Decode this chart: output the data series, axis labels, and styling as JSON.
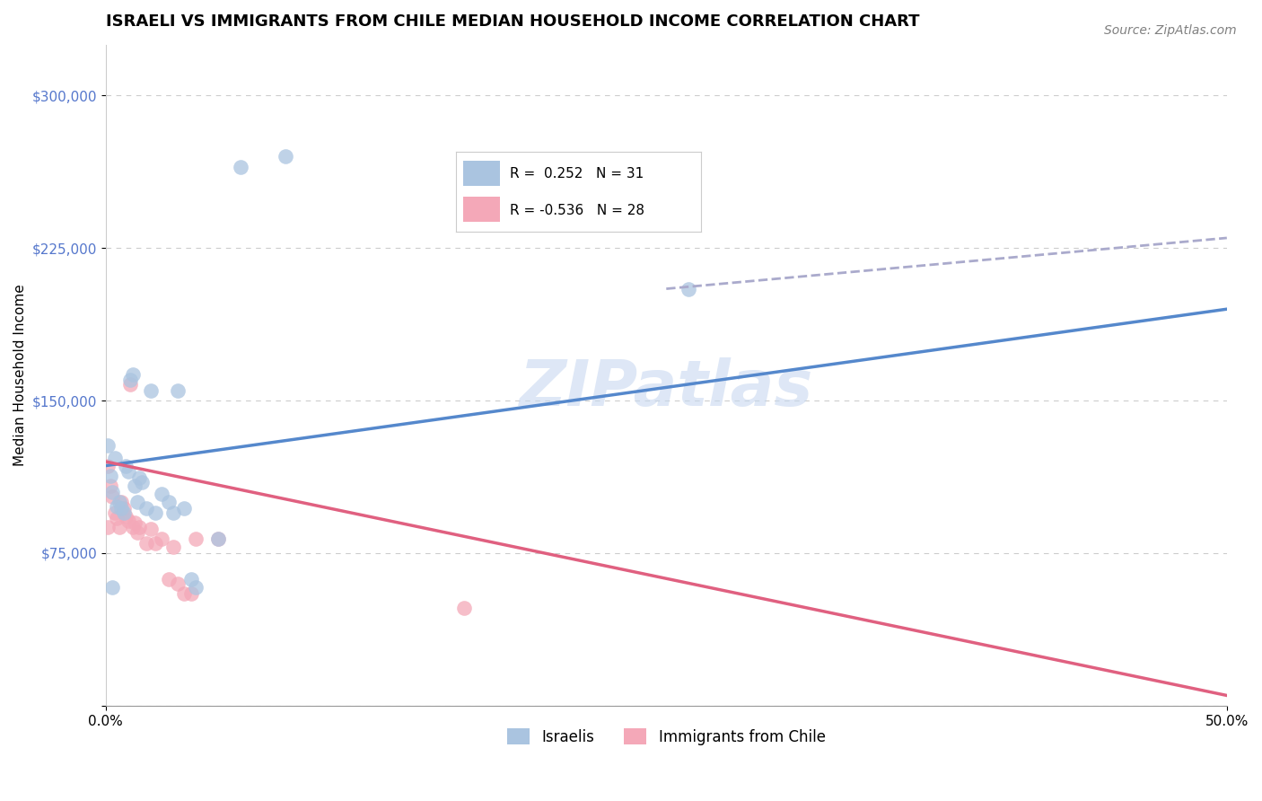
{
  "title": "ISRAELI VS IMMIGRANTS FROM CHILE MEDIAN HOUSEHOLD INCOME CORRELATION CHART",
  "source": "Source: ZipAtlas.com",
  "xlabel": "",
  "ylabel": "Median Household Income",
  "xlim": [
    0.0,
    0.5
  ],
  "ylim": [
    0,
    325000
  ],
  "yticks": [
    0,
    75000,
    150000,
    225000,
    300000
  ],
  "ytick_labels": [
    "",
    "$75,000",
    "$150,000",
    "$225,000",
    "$300,000"
  ],
  "xtick_labels": [
    "0.0%",
    "50.0%"
  ],
  "legend_r1": "R =  0.252   N = 31",
  "legend_r2": "R = -0.536   N = 28",
  "watermark": "ZIPatlas",
  "background_color": "#ffffff",
  "grid_color": "#cccccc",
  "israeli_color": "#aac4e0",
  "chile_color": "#f4a8b8",
  "israeli_line_color": "#5588cc",
  "chile_line_color": "#e06080",
  "dashed_line_color": "#aaaacc",
  "israeli_scatter": [
    [
      0.001,
      128000
    ],
    [
      0.002,
      113000
    ],
    [
      0.003,
      105000
    ],
    [
      0.004,
      122000
    ],
    [
      0.005,
      98000
    ],
    [
      0.006,
      100000
    ],
    [
      0.007,
      97000
    ],
    [
      0.008,
      95000
    ],
    [
      0.009,
      118000
    ],
    [
      0.01,
      115000
    ],
    [
      0.011,
      160000
    ],
    [
      0.012,
      163000
    ],
    [
      0.013,
      108000
    ],
    [
      0.014,
      100000
    ],
    [
      0.015,
      112000
    ],
    [
      0.016,
      110000
    ],
    [
      0.018,
      97000
    ],
    [
      0.02,
      155000
    ],
    [
      0.022,
      95000
    ],
    [
      0.025,
      104000
    ],
    [
      0.028,
      100000
    ],
    [
      0.03,
      95000
    ],
    [
      0.032,
      155000
    ],
    [
      0.035,
      97000
    ],
    [
      0.038,
      62000
    ],
    [
      0.04,
      58000
    ],
    [
      0.05,
      82000
    ],
    [
      0.06,
      265000
    ],
    [
      0.08,
      270000
    ],
    [
      0.26,
      205000
    ],
    [
      0.003,
      58000
    ]
  ],
  "chile_scatter": [
    [
      0.001,
      118000
    ],
    [
      0.002,
      108000
    ],
    [
      0.003,
      103000
    ],
    [
      0.004,
      95000
    ],
    [
      0.005,
      92000
    ],
    [
      0.006,
      88000
    ],
    [
      0.007,
      100000
    ],
    [
      0.008,
      97000
    ],
    [
      0.009,
      93000
    ],
    [
      0.01,
      91000
    ],
    [
      0.011,
      158000
    ],
    [
      0.012,
      88000
    ],
    [
      0.013,
      90000
    ],
    [
      0.014,
      85000
    ],
    [
      0.015,
      88000
    ],
    [
      0.018,
      80000
    ],
    [
      0.02,
      87000
    ],
    [
      0.022,
      80000
    ],
    [
      0.025,
      82000
    ],
    [
      0.028,
      62000
    ],
    [
      0.03,
      78000
    ],
    [
      0.032,
      60000
    ],
    [
      0.035,
      55000
    ],
    [
      0.038,
      55000
    ],
    [
      0.04,
      82000
    ],
    [
      0.05,
      82000
    ],
    [
      0.16,
      48000
    ],
    [
      0.001,
      88000
    ]
  ],
  "israeli_line_x": [
    0.0,
    0.5
  ],
  "israeli_line_y": [
    118000,
    195000
  ],
  "chile_line_x": [
    0.0,
    0.5
  ],
  "chile_line_y": [
    120000,
    5000
  ],
  "dashed_line_x": [
    0.25,
    0.5
  ],
  "dashed_line_y": [
    205000,
    230000
  ],
  "marker_size": 12,
  "title_fontsize": 13,
  "axis_label_fontsize": 11,
  "tick_fontsize": 11,
  "legend_fontsize": 12,
  "source_fontsize": 10
}
